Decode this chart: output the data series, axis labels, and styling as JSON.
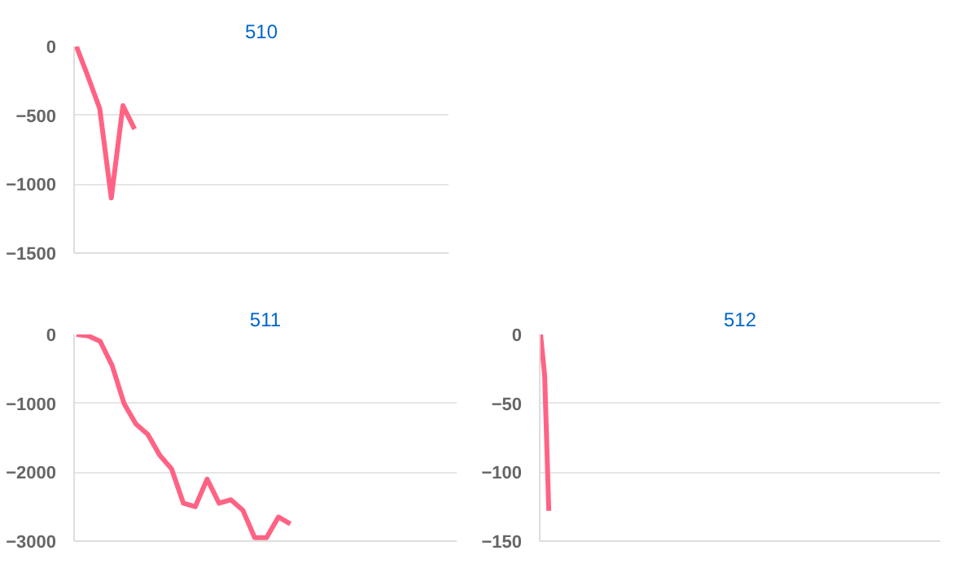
{
  "chart_data": [
    {
      "type": "line",
      "title": "510",
      "categories": [
        null,
        null,
        null,
        null,
        null,
        null,
        null,
        null,
        null,
        null,
        null,
        null,
        null,
        null,
        null,
        null,
        null,
        null,
        null,
        null,
        null,
        null,
        null,
        null,
        null,
        null,
        null,
        null,
        null,
        null,
        null,
        null,
        null
      ],
      "series": [
        {
          "color": "#ff6384",
          "values": [
            0,
            -220,
            -450,
            -1100,
            -430,
            -600,
            null,
            null,
            null,
            null,
            null,
            null,
            null,
            null,
            null,
            null,
            null,
            null,
            null,
            null,
            null,
            null,
            null,
            null,
            null,
            null,
            null,
            null,
            null,
            null,
            null,
            null,
            null
          ]
        }
      ],
      "ylim": [
        -1500,
        0
      ],
      "yticks": [
        0,
        -500,
        -1000,
        -1500
      ],
      "grid": "y",
      "tick_labels": "y"
    },
    {
      "type": "line",
      "title": "511",
      "categories": [
        null,
        null,
        null,
        null,
        null,
        null,
        null,
        null,
        null,
        null,
        null,
        null,
        null,
        null,
        null,
        null,
        null,
        null,
        null,
        null,
        null,
        null,
        null,
        null,
        null,
        null,
        null,
        null,
        null,
        null,
        null,
        null,
        null
      ],
      "series": [
        {
          "color": "#ff6384",
          "values": [
            0,
            -20,
            -100,
            -450,
            -1000,
            -1300,
            -1450,
            -1750,
            -1950,
            -2450,
            -2500,
            -2100,
            -2450,
            -2400,
            -2550,
            -2950,
            -2950,
            -2650,
            -2750,
            null,
            null,
            null,
            null,
            null,
            null,
            null,
            null,
            null,
            null,
            null,
            null,
            null,
            null
          ]
        }
      ],
      "ylim": [
        -3000,
        0
      ],
      "yticks": [
        0,
        -1000,
        -2000,
        -3000
      ],
      "grid": "y",
      "tick_labels": "y"
    },
    {
      "type": "line",
      "title": "512",
      "categories": [
        null,
        null,
        null,
        null,
        null,
        null,
        null,
        null,
        null,
        null,
        null,
        null,
        null,
        null,
        null,
        null,
        null,
        null,
        null,
        null,
        null,
        null,
        null,
        null,
        null,
        null,
        null,
        null,
        null,
        null,
        null,
        null,
        null,
        null,
        null,
        null,
        null,
        null,
        null,
        null,
        null,
        null,
        null,
        null,
        null,
        null,
        null,
        null,
        null,
        null,
        null,
        null,
        null,
        null,
        null,
        null,
        null,
        null,
        null,
        null,
        null,
        null,
        null,
        null,
        null,
        null,
        null,
        null,
        null,
        null,
        null,
        null,
        null,
        null,
        null,
        null,
        null,
        null,
        null,
        null,
        null,
        null,
        null,
        null,
        null,
        null,
        null,
        null,
        null,
        null,
        null,
        null,
        null,
        null,
        null,
        null,
        null,
        null
      ],
      "series": [
        {
          "color": "#ff6384",
          "values": [
            0,
            -30,
            -128,
            null,
            null,
            null,
            null,
            null,
            null,
            null,
            null,
            null,
            null,
            null,
            null,
            null,
            null,
            null,
            null,
            null,
            null,
            null,
            null,
            null,
            null,
            null,
            null,
            null,
            null,
            null,
            null,
            null,
            null,
            null,
            null,
            null,
            null,
            null,
            null,
            null,
            null,
            null,
            null,
            null,
            null,
            null,
            null,
            null,
            null,
            null,
            null,
            null,
            null,
            null,
            null,
            null,
            null,
            null,
            null,
            null,
            null,
            null,
            null,
            null,
            null,
            null,
            null,
            null,
            null,
            null,
            null,
            null,
            null,
            null,
            null,
            null,
            null,
            null,
            null,
            null,
            null,
            null,
            null,
            null,
            null,
            null,
            null,
            null,
            null,
            null,
            null,
            null,
            null,
            null,
            null,
            null,
            null,
            null
          ]
        }
      ],
      "ylim": [
        -150,
        0
      ],
      "yticks": [
        0,
        -50,
        -100,
        -150
      ],
      "grid": "y",
      "tick_labels": "y"
    }
  ]
}
